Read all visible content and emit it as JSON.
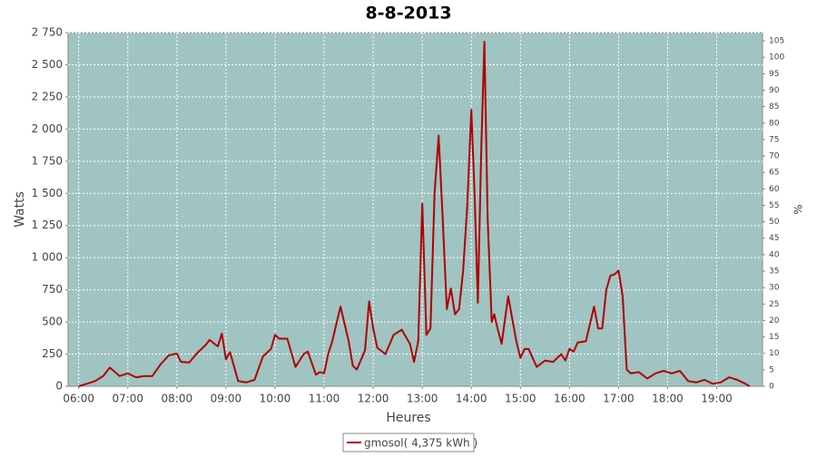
{
  "chart_data": {
    "type": "line",
    "title": "8-8-2013",
    "x_label": "Heures",
    "y_label": "Watts",
    "y2_label": "%",
    "xlim": [
      "05:47",
      "19:56"
    ],
    "xticks": [
      "06:00",
      "07:00",
      "08:00",
      "09:00",
      "10:00",
      "11:00",
      "12:00",
      "13:00",
      "14:00",
      "15:00",
      "16:00",
      "17:00",
      "18:00",
      "19:00"
    ],
    "ylim": [
      0,
      2750
    ],
    "yticks": [
      0,
      250,
      500,
      750,
      {
        "value": 1000,
        "label": "1 000"
      },
      {
        "value": 1250,
        "label": "1 250"
      },
      {
        "value": 1500,
        "label": "1 500"
      },
      {
        "value": 1750,
        "label": "1 750"
      },
      {
        "value": 2000,
        "label": "2 000"
      },
      {
        "value": 2250,
        "label": "2 250"
      },
      {
        "value": 2500,
        "label": "2 500"
      },
      {
        "value": 2750,
        "label": "2 750"
      }
    ],
    "y2lim": [
      0,
      107.5
    ],
    "y2ticks": [
      0,
      5,
      10,
      15,
      20,
      25,
      30,
      35,
      40,
      45,
      50,
      55,
      60,
      65,
      70,
      75,
      80,
      85,
      90,
      95,
      100,
      105
    ],
    "grid": true,
    "legend": "bottom",
    "x": [
      "06:00",
      "06:10",
      "06:20",
      "06:30",
      "06:38",
      "06:50",
      "07:00",
      "07:10",
      "07:20",
      "07:30",
      "07:40",
      "07:50",
      "08:00",
      "08:05",
      "08:15",
      "08:25",
      "08:35",
      "08:40",
      "08:50",
      "08:55",
      "09:00",
      "09:05",
      "09:15",
      "09:25",
      "09:35",
      "09:45",
      "09:55",
      "10:00",
      "10:05",
      "10:15",
      "10:25",
      "10:35",
      "10:40",
      "10:50",
      "10:55",
      "11:00",
      "11:05",
      "11:10",
      "11:20",
      "11:30",
      "11:35",
      "11:40",
      "11:50",
      "11:55",
      "12:00",
      "12:05",
      "12:15",
      "12:25",
      "12:35",
      "12:45",
      "12:50",
      "12:55",
      "13:00",
      "13:05",
      "13:10",
      "13:15",
      "13:20",
      "13:25",
      "13:30",
      "13:35",
      "13:40",
      "13:45",
      "13:50",
      "13:55",
      "14:00",
      "14:04",
      "14:08",
      "14:12",
      "14:16",
      "14:20",
      "14:25",
      "14:28",
      "14:32",
      "14:37",
      "14:45",
      "14:55",
      "15:00",
      "15:05",
      "15:10",
      "15:20",
      "15:30",
      "15:40",
      "15:50",
      "15:55",
      "16:00",
      "16:05",
      "16:10",
      "16:20",
      "16:30",
      "16:35",
      "16:40",
      "16:45",
      "16:50",
      "16:55",
      "17:00",
      "17:05",
      "17:10",
      "17:15",
      "17:25",
      "17:35",
      "17:45",
      "17:55",
      "18:05",
      "18:15",
      "18:25",
      "18:35",
      "18:45",
      "18:55",
      "19:05",
      "19:15",
      "19:25",
      "19:35",
      "19:40"
    ],
    "series": [
      {
        "name": "gmosol( 4,375 kWh )",
        "color": "#b00000",
        "values": [
          0,
          20,
          40,
          80,
          145,
          80,
          100,
          70,
          80,
          80,
          170,
          240,
          255,
          190,
          185,
          260,
          320,
          360,
          310,
          410,
          210,
          265,
          40,
          30,
          50,
          230,
          290,
          400,
          370,
          370,
          150,
          250,
          270,
          90,
          110,
          100,
          250,
          350,
          620,
          350,
          160,
          130,
          280,
          660,
          450,
          300,
          250,
          400,
          440,
          330,
          190,
          350,
          1420,
          400,
          450,
          1500,
          1950,
          1300,
          600,
          760,
          560,
          600,
          900,
          1400,
          2150,
          1500,
          650,
          1800,
          2680,
          1300,
          500,
          560,
          450,
          330,
          700,
          350,
          220,
          290,
          290,
          150,
          200,
          190,
          250,
          200,
          290,
          270,
          340,
          350,
          620,
          450,
          450,
          750,
          860,
          870,
          900,
          700,
          130,
          100,
          110,
          60,
          100,
          120,
          100,
          120,
          40,
          30,
          50,
          20,
          30,
          70,
          50,
          20,
          0
        ]
      }
    ]
  }
}
